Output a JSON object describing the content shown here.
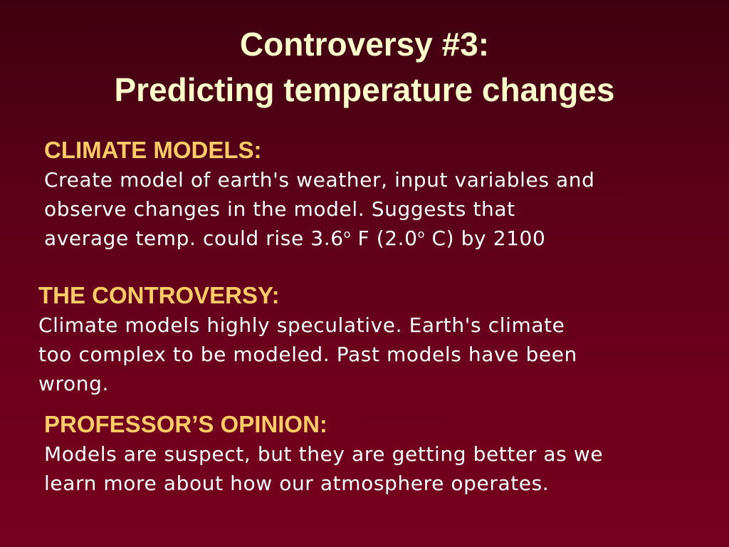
{
  "title": [
    "Controversy #3:",
    "Predicting temperature changes"
  ],
  "sections": [
    {
      "heading": "CLIMATE MODELS:",
      "lines": [
        "Create model of earth's weather, input variables and",
        "observe changes in the model.  Suggests that",
        [
          "average temp. could rise 3.6",
          "o",
          " F (2.0",
          "o",
          " C) by 2100"
        ]
      ]
    },
    {
      "heading": "THE CONTROVERSY:",
      "lines": [
        "Climate models highly speculative.  Earth's climate",
        "too complex to be modeled.  Past models have been",
        "wrong."
      ]
    },
    {
      "heading": "PROFESSOR’S OPINION:",
      "lines": [
        "Models are suspect, but they are getting better as we",
        "learn more about how our atmosphere operates."
      ]
    }
  ]
}
